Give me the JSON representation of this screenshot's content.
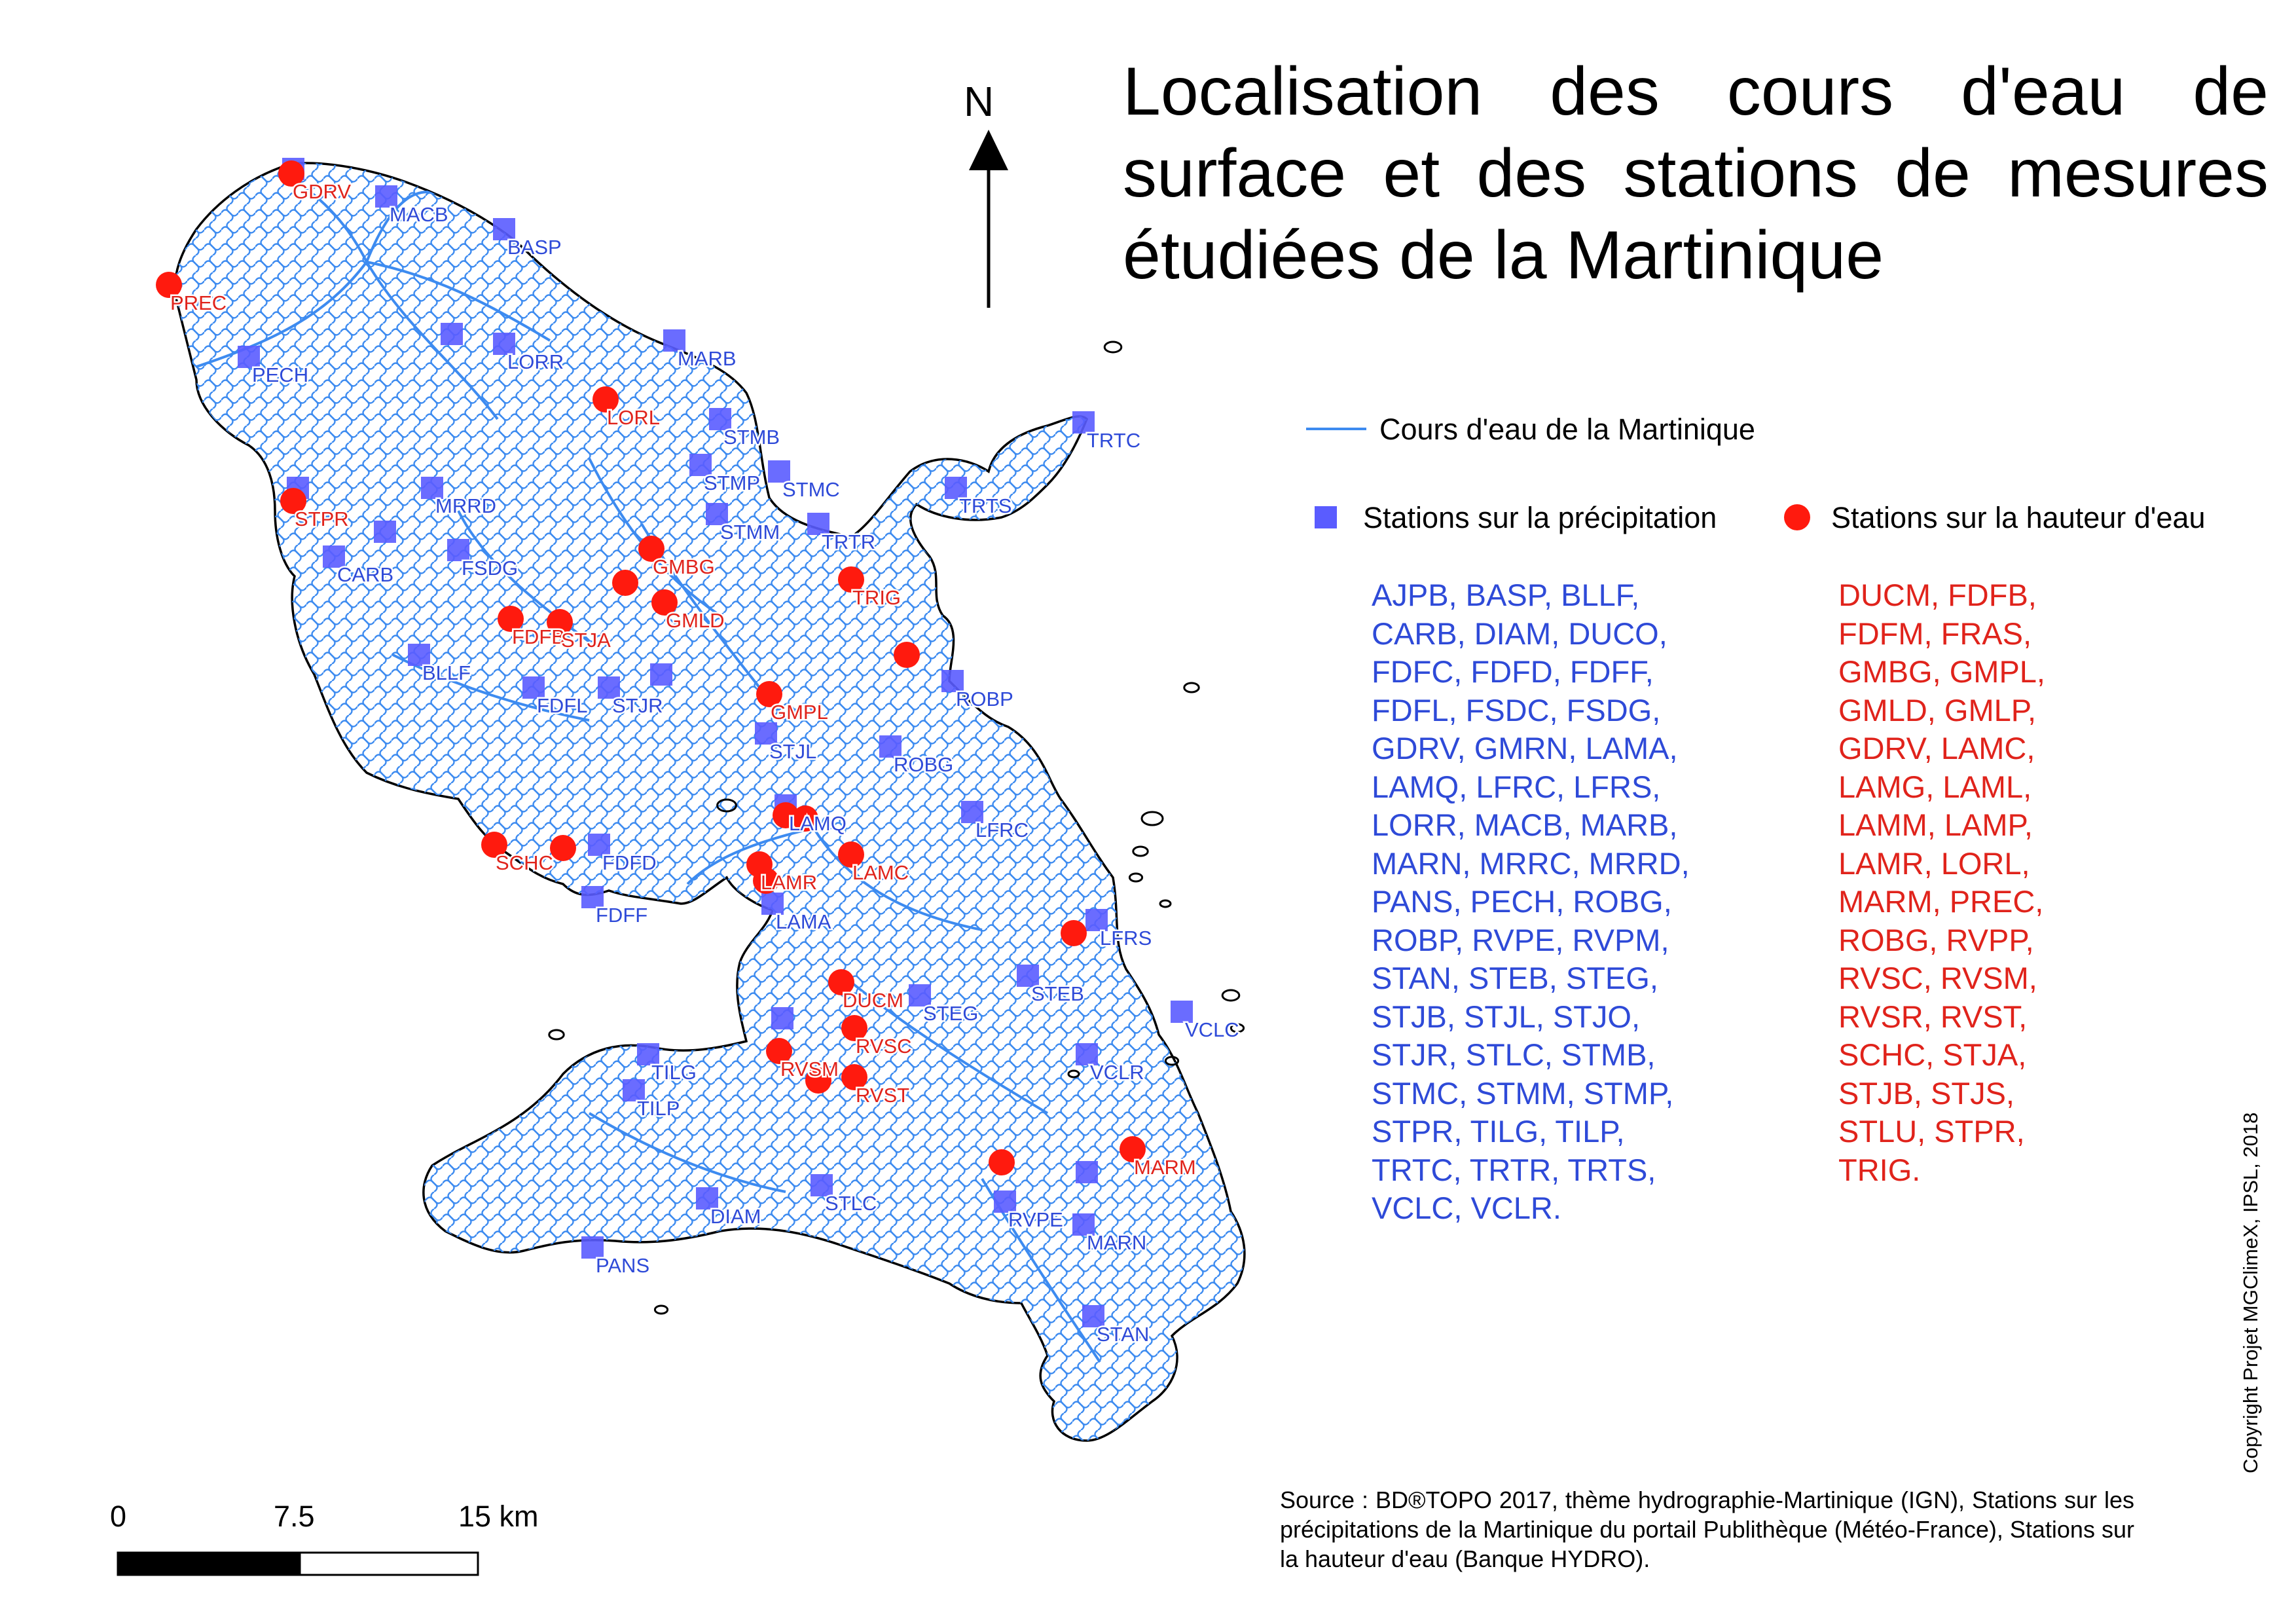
{
  "title": "Localisation des cours d'eau de surface et des stations de mesures étudiées de la Martinique",
  "north_label": "N",
  "legend": {
    "rivers_label": "Cours d'eau de la Martinique",
    "rivers_color": "#3d8bf0",
    "precip_label": "Stations sur la précipitation",
    "precip_color": "#5a5cff",
    "hauteur_label": "Stations sur la hauteur d'eau",
    "hauteur_color": "#ff1a0e"
  },
  "precip_codes_text": "AJPB, BASP, BLLF,\nCARB, DIAM, DUCO,\nFDFC, FDFD, FDFF,\nFDFL, FSDC, FSDG,\nGDRV, GMRN, LAMA,\nLAMQ, LFRC, LFRS,\nLORR, MACB, MARB,\nMARN, MRRC, MRRD,\nPANS, PECH, ROBG,\nROBP, RVPE, RVPM,\nSTAN, STEB, STEG,\nSTJB, STJL, STJO,\nSTJR, STLC, STMB,\nSTMC, STMM, STMP,\nSTPR, TILG, TILP,\nTRTC, TRTR, TRTS,\nVCLC, VCLR.",
  "hauteur_codes_text": "DUCM, FDFB,\nFDFM, FRAS,\nGMBG, GMPL,\nGMLD, GMLP,\nGDRV, LAMC,\nLAMG, LAML,\nLAMM, LAMP,\nLAMR, LORL,\nMARM, PREC,\nROBG, RVPP,\nRVSC, RVSM,\nRVSR, RVST,\nSCHC, STJA,\nSTJB, STJS,\nSTLU, STPR,\nTRIG.",
  "source_text": "Source : BD®TOPO 2017, thème hydrographie-Martinique (IGN), Stations sur les précipitations de la Martinique du portail Publithèque (Météo-France), Stations sur la hauteur d'eau (Banque HYDRO).",
  "copyright": "Copyright Projet MGClimeX, IPSL, 2018",
  "scale_bar": {
    "labels": [
      "0",
      "7.5",
      "15 km"
    ]
  },
  "map_labels": {
    "precip": [
      "MACB",
      "BASP",
      "PECH",
      "LORR",
      "MARB",
      "STMB",
      "STMP",
      "STMC",
      "TRTC",
      "TRTS",
      "MRRD",
      "STMM",
      "TRTR",
      "CARB",
      "FSDG",
      "BLLF",
      "FDFL",
      "STJR",
      "ROBP",
      "STJL",
      "ROBG",
      "LAMQ",
      "LFRC",
      "FDFD",
      "FDFF",
      "LAMA",
      "LFRS",
      "STEB",
      "STEG",
      "VCLC",
      "VCLR",
      "TILG",
      "TILP",
      "DIAM",
      "STLC",
      "RVPE",
      "MARN",
      "PANS",
      "STAN"
    ],
    "hauteur": [
      "GDRV",
      "PREC",
      "LORL",
      "STPR",
      "GMBG",
      "TRIG",
      "GMLD",
      "FDFB",
      "STJA",
      "GMPL",
      "SCHC",
      "LAMR",
      "LAMC",
      "DUCM",
      "RVSC",
      "RVSM",
      "RVST",
      "MARM"
    ]
  }
}
